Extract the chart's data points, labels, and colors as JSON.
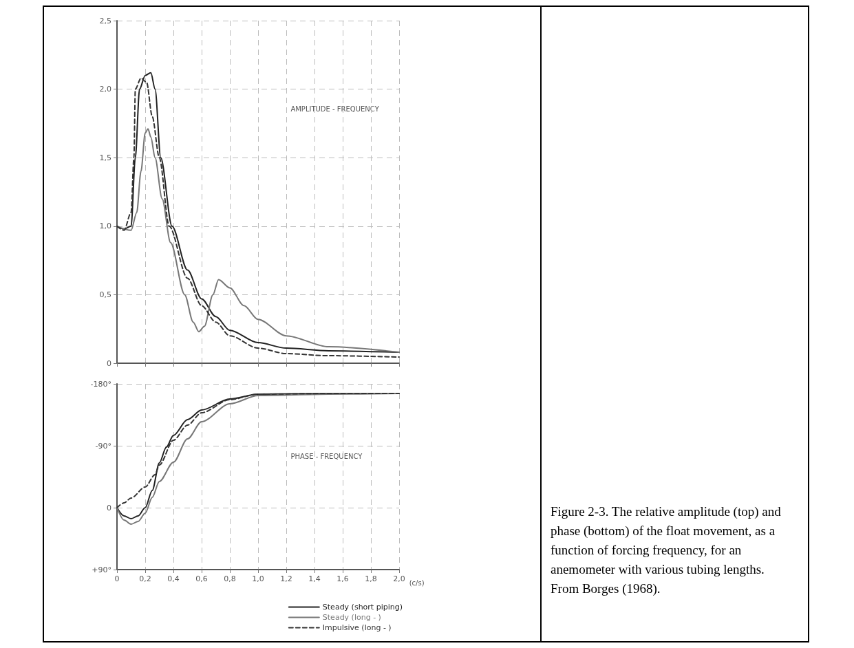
{
  "chart_data": [
    {
      "type": "line",
      "annotations": [
        "AMPLITUDE - FREQUENCY",
        "Figure 2-3. The relative amplitude (top) and phase (bottom) of the float movement, as a function of forcing frequency, for an anemometer with various tubing lengths. From Borges (1968)."
      ],
      "xlim": [
        0,
        2
      ],
      "xticks": [
        0,
        0.2,
        0.4,
        0.6,
        0.8,
        1,
        1.2,
        1.4,
        1.6,
        1.8,
        2
      ],
      "ylim": [
        0,
        2.5
      ],
      "yticks": [
        0,
        {
          "value": 0.5,
          "label": "0,5"
        },
        {
          "value": 1,
          "label": "1,0"
        },
        {
          "value": 1.5,
          "label": "1,5"
        },
        {
          "value": 2,
          "label": "2,0"
        },
        {
          "value": 2.5,
          "label": "2,5"
        }
      ],
      "tick_labels": "y",
      "grid": true,
      "legend": false,
      "marker": "none",
      "series": [
        {
          "color": "#222222",
          "line_style": "solid",
          "x": [
            0,
            0.05,
            0.1,
            0.13,
            0.16,
            0.2,
            0.24,
            0.27,
            0.31,
            0.39,
            0.5,
            0.6,
            0.7,
            0.8,
            1.0,
            1.2,
            1.5,
            2.0
          ],
          "values": [
            1.0,
            0.98,
            1.0,
            1.5,
            2.0,
            2.1,
            2.12,
            2.0,
            1.5,
            1.0,
            0.68,
            0.47,
            0.34,
            0.24,
            0.15,
            0.11,
            0.09,
            0.08
          ]
        },
        {
          "color": "#777777",
          "line_style": "solid",
          "x": [
            0,
            0.1,
            0.14,
            0.17,
            0.2,
            0.22,
            0.24,
            0.27,
            0.32,
            0.38,
            0.48,
            0.54,
            0.58,
            0.62,
            0.68,
            0.72,
            0.8,
            0.9,
            1.0,
            1.2,
            1.5,
            2.0
          ],
          "values": [
            1.0,
            0.97,
            1.1,
            1.4,
            1.68,
            1.71,
            1.65,
            1.5,
            1.2,
            0.88,
            0.5,
            0.3,
            0.23,
            0.27,
            0.5,
            0.61,
            0.55,
            0.42,
            0.32,
            0.2,
            0.12,
            0.08
          ]
        },
        {
          "color": "#333333",
          "line_style": "dashed",
          "x": [
            0,
            0.05,
            0.1,
            0.12,
            0.13,
            0.17,
            0.21,
            0.25,
            0.3,
            0.37,
            0.5,
            0.6,
            0.7,
            0.8,
            1.0,
            1.2,
            1.5,
            2.0
          ],
          "values": [
            1.0,
            0.97,
            1.1,
            1.5,
            2.0,
            2.08,
            2.05,
            1.8,
            1.5,
            1.0,
            0.62,
            0.42,
            0.3,
            0.2,
            0.11,
            0.07,
            0.055,
            0.045
          ]
        }
      ]
    },
    {
      "type": "line",
      "annotations": [
        "PHASE - FREQUENCY"
      ],
      "xlabel": "(c/s)",
      "xlim": [
        0,
        2
      ],
      "xticks": [
        0,
        {
          "value": 0.2,
          "label": "0,2"
        },
        {
          "value": 0.4,
          "label": "0,4"
        },
        {
          "value": 0.6,
          "label": "0,6"
        },
        {
          "value": 0.8,
          "label": "0,8"
        },
        {
          "value": 1,
          "label": "1,0"
        },
        {
          "value": 1.2,
          "label": "1,2"
        },
        {
          "value": 1.4,
          "label": "1,4"
        },
        {
          "value": 1.6,
          "label": "1,6"
        },
        {
          "value": 1.8,
          "label": "1,8"
        },
        {
          "value": 2,
          "label": "2,0"
        }
      ],
      "ylim": [
        90,
        -180
      ],
      "yticks": [
        {
          "value": -180,
          "label": "-180°"
        },
        {
          "value": -90,
          "label": "-90°"
        },
        0,
        {
          "value": 90,
          "label": "+90°"
        }
      ],
      "grid": true,
      "legend": "bottom right",
      "marker": "none",
      "series": [
        {
          "name": "Steady (short piping)",
          "color": "#222222",
          "line_style": "solid",
          "x": [
            0,
            0.05,
            0.1,
            0.15,
            0.2,
            0.25,
            0.3,
            0.35,
            0.4,
            0.5,
            0.6,
            0.8,
            1.0,
            1.5,
            2.0
          ],
          "values": [
            0,
            12,
            16,
            12,
            0,
            -25,
            -65,
            -88,
            -105,
            -128,
            -142,
            -158,
            -165,
            -166,
            -166
          ]
        },
        {
          "name": "Steady (long - )",
          "color": "#777777",
          "line_style": "solid",
          "x": [
            0,
            0.05,
            0.1,
            0.15,
            0.2,
            0.25,
            0.3,
            0.4,
            0.5,
            0.6,
            0.8,
            1.0,
            1.5,
            2.0
          ],
          "values": [
            0,
            18,
            24,
            20,
            8,
            -15,
            -38,
            -66,
            -100,
            -125,
            -151,
            -163,
            -165,
            -166
          ]
        },
        {
          "name": "Impulsive (long - )",
          "color": "#333333",
          "line_style": "dashed",
          "x": [
            0,
            0.05,
            0.1,
            0.2,
            0.27,
            0.3,
            0.4,
            0.5,
            0.6,
            0.8,
            1.0,
            1.5,
            2.0
          ],
          "values": [
            0,
            -7,
            -14,
            -30,
            -48,
            -62,
            -98,
            -120,
            -138,
            -157,
            -165,
            -166,
            -166
          ]
        }
      ]
    }
  ]
}
